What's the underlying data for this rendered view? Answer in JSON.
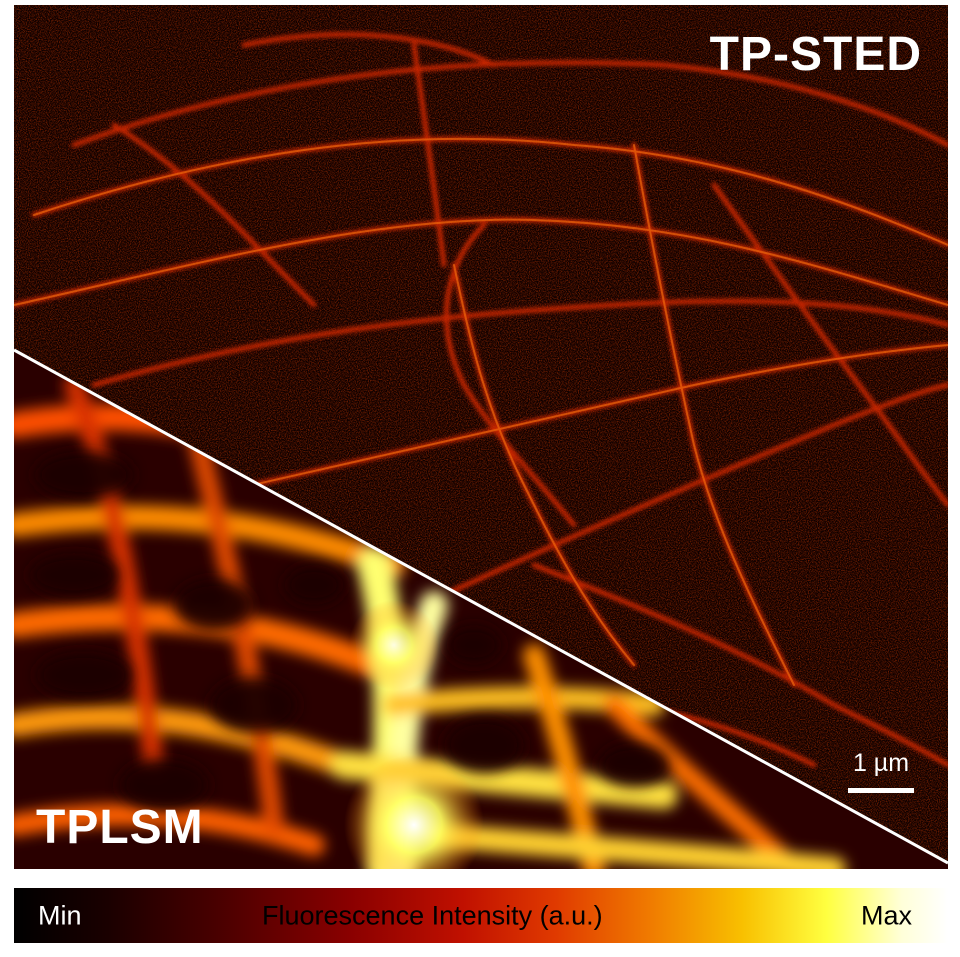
{
  "panels": {
    "top_right_label": "TP-STED",
    "bottom_left_label": "TPLSM"
  },
  "scalebar": {
    "label": "1 µm"
  },
  "colorbar": {
    "min_label": "Min",
    "title": "Fluorescence Intensity (a.u.)",
    "max_label": "Max",
    "colors": [
      "#000000",
      "#4a0000",
      "#c01000",
      "#f07a00",
      "#ffff40",
      "#ffffff"
    ]
  },
  "colors": {
    "divider": "#ffffff",
    "background": "#0a0000"
  }
}
